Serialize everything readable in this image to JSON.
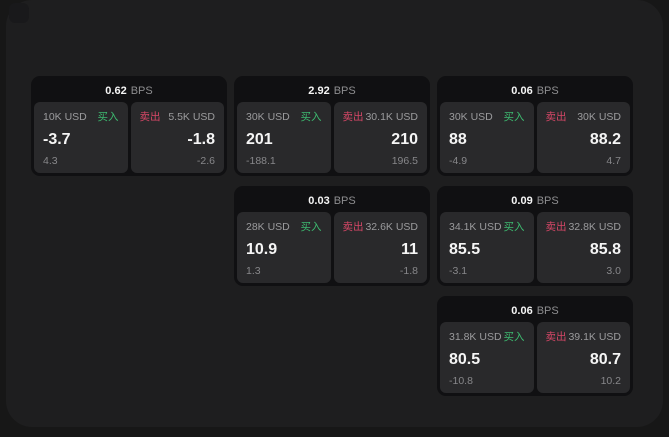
{
  "labels": {
    "buy": "买入",
    "sell": "卖出",
    "bps_suffix": "BPS"
  },
  "colors": {
    "accent_green": "#3dbb70",
    "accent_red": "#d64767",
    "panel_bg": "#1e1e1f",
    "card_bg": "#101012",
    "subpanel_bg": "#29292b"
  },
  "cards": [
    {
      "row": 1,
      "col": 1,
      "bps": "0.62",
      "buy": {
        "size": "10K USD",
        "price": "-3.7",
        "delta": "4.3"
      },
      "sell": {
        "size": "5.5K USD",
        "price": "-1.8",
        "delta": "-2.6"
      }
    },
    {
      "row": 1,
      "col": 2,
      "bps": "2.92",
      "buy": {
        "size": "30K USD",
        "price": "201",
        "delta": "-188.1"
      },
      "sell": {
        "size": "30.1K USD",
        "price": "210",
        "delta": "196.5"
      }
    },
    {
      "row": 1,
      "col": 3,
      "bps": "0.06",
      "buy": {
        "size": "30K USD",
        "price": "88",
        "delta": "-4.9"
      },
      "sell": {
        "size": "30K USD",
        "price": "88.2",
        "delta": "4.7"
      }
    },
    {
      "row": 2,
      "col": 2,
      "bps": "0.03",
      "buy": {
        "size": "28K USD",
        "price": "10.9",
        "delta": "1.3"
      },
      "sell": {
        "size": "32.6K USD",
        "price": "11",
        "delta": "-1.8"
      }
    },
    {
      "row": 2,
      "col": 3,
      "bps": "0.09",
      "buy": {
        "size": "34.1K USD",
        "price": "85.5",
        "delta": "-3.1"
      },
      "sell": {
        "size": "32.8K USD",
        "price": "85.8",
        "delta": "3.0"
      }
    },
    {
      "row": 3,
      "col": 3,
      "bps": "0.06",
      "buy": {
        "size": "31.8K USD",
        "price": "80.5",
        "delta": "-10.8"
      },
      "sell": {
        "size": "39.1K USD",
        "price": "80.7",
        "delta": "10.2"
      }
    }
  ]
}
